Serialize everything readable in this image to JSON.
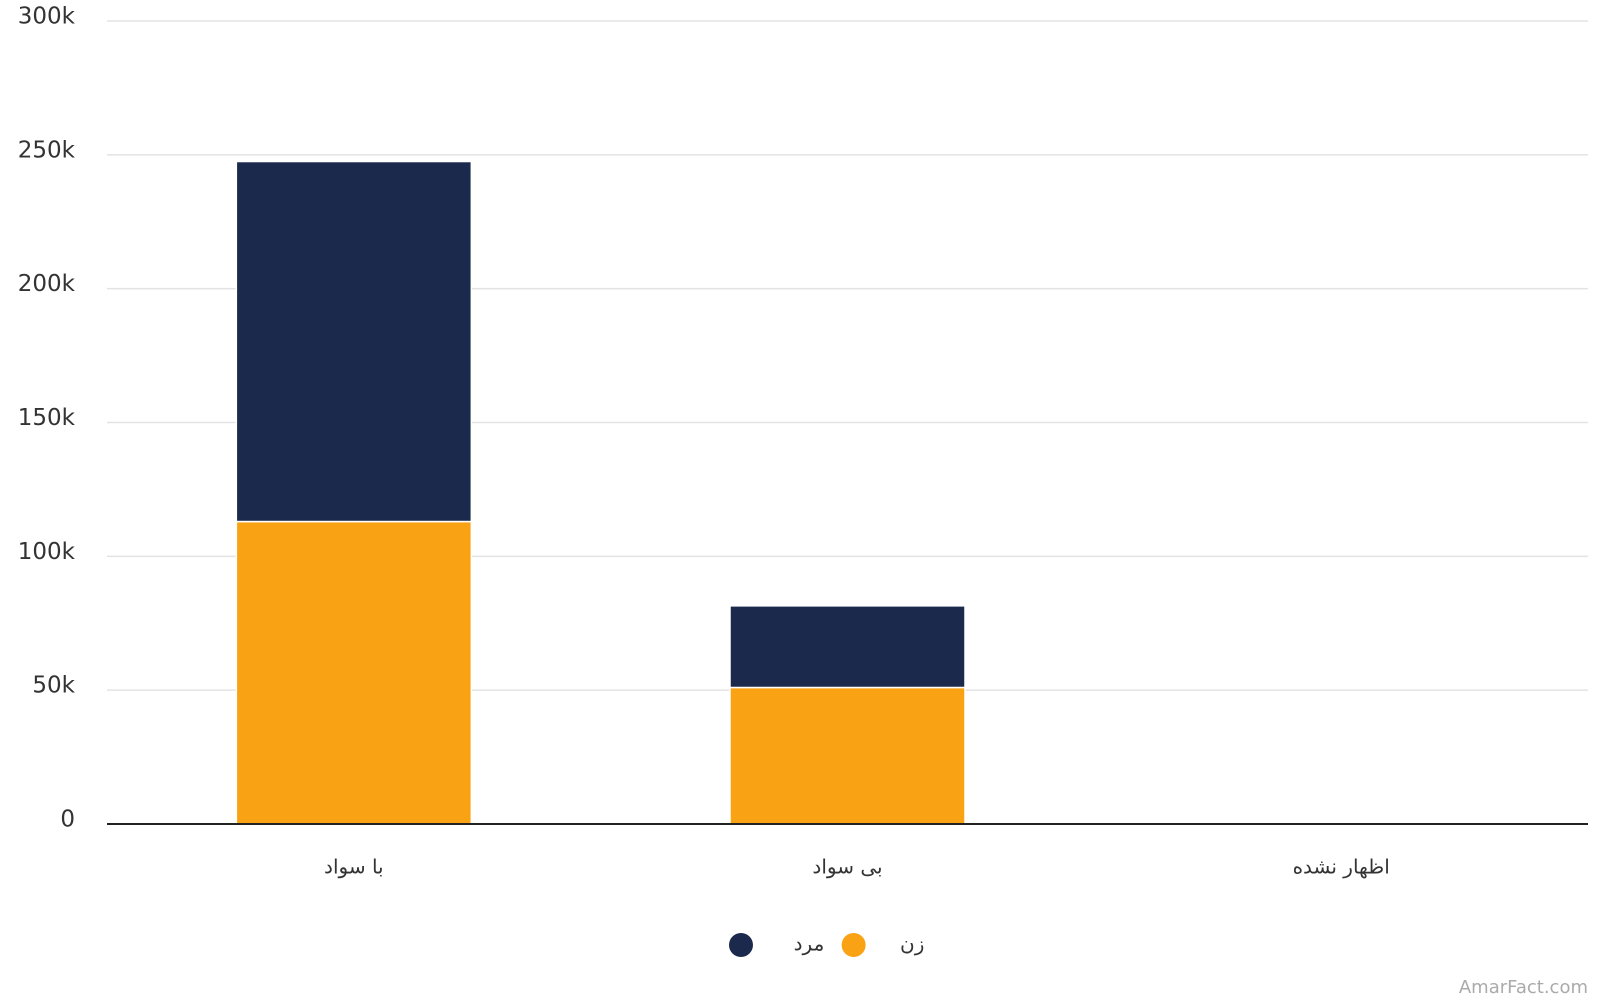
{
  "chart_data": {
    "type": "stacked_bar",
    "categories": [
      "با سواد",
      "بی سواد",
      "اظهار نشده"
    ],
    "series": [
      {
        "name": "زن",
        "color": "#f9a314",
        "values": [
          113000,
          51000,
          0
        ]
      },
      {
        "name": "مرد",
        "color": "#1b2a4c",
        "values": [
          134500,
          30500,
          0
        ]
      }
    ],
    "ylim": [
      0,
      300000
    ],
    "yticks": [
      0,
      {
        "value": 50000,
        "label": "50k"
      },
      {
        "value": 100000,
        "label": "100k"
      },
      {
        "value": 150000,
        "label": "150k"
      },
      {
        "value": 200000,
        "label": "200k"
      },
      {
        "value": 250000,
        "label": "250k"
      },
      {
        "value": 300000,
        "label": "300k"
      }
    ],
    "grid": true,
    "watermark": "AmarFact.com"
  }
}
